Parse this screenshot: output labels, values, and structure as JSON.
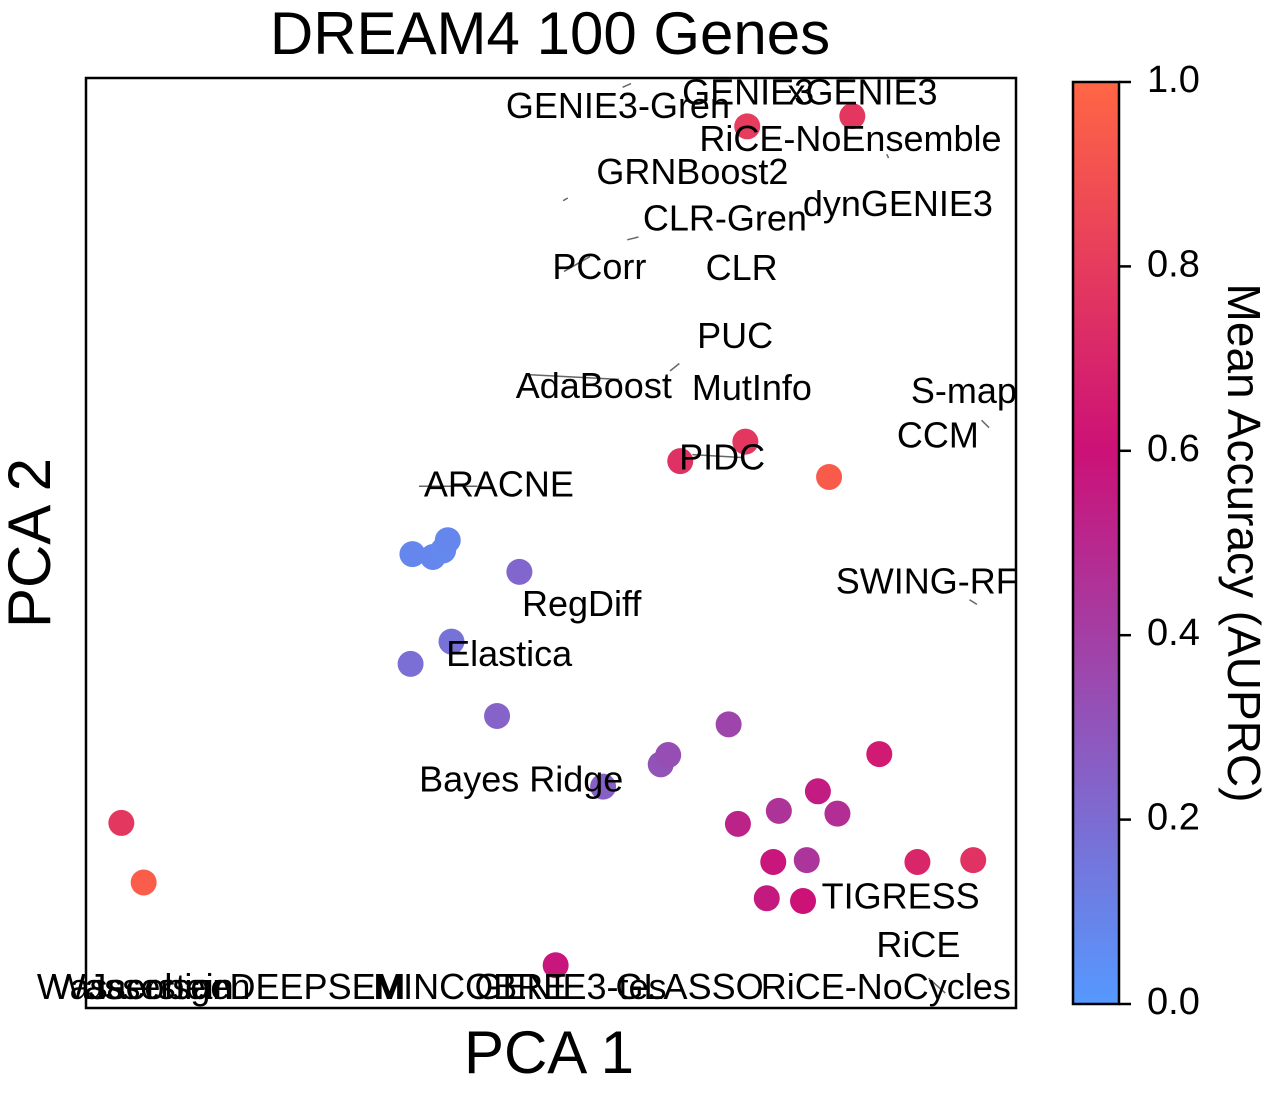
{
  "chart_data": {
    "type": "scatter",
    "title": "DREAM4 100 Genes",
    "xlabel": "PCA 1",
    "ylabel": "PCA 2",
    "xlim": [
      0,
      100
    ],
    "ylim": [
      0,
      100
    ],
    "xticks": false,
    "yticks": false,
    "grid": false,
    "colorbar": {
      "label": "Mean Accuracy (AUPRC)",
      "range": [
        0.0,
        1.0
      ],
      "ticks": [
        "0.0",
        "0.2",
        "0.4",
        "0.6",
        "0.8",
        "1.0"
      ],
      "colors": {
        "low": "#5599ff",
        "mid": "#cc1177",
        "high": "#ff6644"
      }
    },
    "points": [
      {
        "x": 71.1,
        "y": 94.8,
        "acc": 0.8
      },
      {
        "x": 82.4,
        "y": 95.9,
        "acc": 0.78
      },
      {
        "x": 79.9,
        "y": 57.1,
        "acc": 0.95
      },
      {
        "x": 70.9,
        "y": 60.9,
        "acc": 0.78
      },
      {
        "x": 63.9,
        "y": 58.8,
        "acc": 0.75
      },
      {
        "x": 3.8,
        "y": 19.9,
        "acc": 0.78
      },
      {
        "x": 6.2,
        "y": 13.5,
        "acc": 0.96
      },
      {
        "x": 35.1,
        "y": 48.8,
        "acc": 0.08
      },
      {
        "x": 37.3,
        "y": 48.5,
        "acc": 0.08
      },
      {
        "x": 38.4,
        "y": 49.2,
        "acc": 0.07
      },
      {
        "x": 38.9,
        "y": 50.3,
        "acc": 0.08
      },
      {
        "x": 46.6,
        "y": 46.9,
        "acc": 0.22
      },
      {
        "x": 39.3,
        "y": 39.4,
        "acc": 0.17
      },
      {
        "x": 34.9,
        "y": 37.0,
        "acc": 0.19
      },
      {
        "x": 44.2,
        "y": 31.4,
        "acc": 0.24
      },
      {
        "x": 55.6,
        "y": 23.8,
        "acc": 0.25
      },
      {
        "x": 61.8,
        "y": 26.2,
        "acc": 0.31
      },
      {
        "x": 62.6,
        "y": 27.2,
        "acc": 0.33
      },
      {
        "x": 69.1,
        "y": 30.5,
        "acc": 0.37
      },
      {
        "x": 85.3,
        "y": 27.3,
        "acc": 0.64
      },
      {
        "x": 74.5,
        "y": 21.2,
        "acc": 0.45
      },
      {
        "x": 78.7,
        "y": 23.3,
        "acc": 0.55
      },
      {
        "x": 80.8,
        "y": 20.9,
        "acc": 0.47
      },
      {
        "x": 70.1,
        "y": 19.8,
        "acc": 0.52
      },
      {
        "x": 73.9,
        "y": 15.7,
        "acc": 0.58
      },
      {
        "x": 77.5,
        "y": 15.9,
        "acc": 0.44
      },
      {
        "x": 89.4,
        "y": 15.7,
        "acc": 0.7
      },
      {
        "x": 95.4,
        "y": 15.9,
        "acc": 0.76
      },
      {
        "x": 73.2,
        "y": 11.8,
        "acc": 0.56
      },
      {
        "x": 77.1,
        "y": 11.5,
        "acc": 0.6
      },
      {
        "x": 50.5,
        "y": 4.6,
        "acc": 0.58
      }
    ],
    "annotations": [
      {
        "text": "GENIE3-Gren",
        "x": 57.2,
        "y": 96.7
      },
      {
        "text": "GENIE3",
        "x": 71.2,
        "y": 98.2
      },
      {
        "text": "xGENIE3",
        "x": 83.5,
        "y": 98.2
      },
      {
        "text": "RiCE-NoEnsemble",
        "x": 82.2,
        "y": 93.2
      },
      {
        "text": "GRNBoost2",
        "x": 65.2,
        "y": 89.6
      },
      {
        "text": "dynGENIE3",
        "x": 87.3,
        "y": 86.2
      },
      {
        "text": "CLR-Gren",
        "x": 68.7,
        "y": 84.6
      },
      {
        "text": "PCorr",
        "x": 55.2,
        "y": 79.4
      },
      {
        "text": "CLR",
        "x": 70.5,
        "y": 79.3
      },
      {
        "text": "PUC",
        "x": 69.8,
        "y": 72.0
      },
      {
        "text": "AdaBoost",
        "x": 54.6,
        "y": 66.6
      },
      {
        "text": "MutInfo",
        "x": 71.6,
        "y": 66.4
      },
      {
        "text": "S-map",
        "x": 94.4,
        "y": 66.1
      },
      {
        "text": "CCM",
        "x": 91.6,
        "y": 61.3
      },
      {
        "text": "PIDC",
        "x": 68.4,
        "y": 58.9
      },
      {
        "text": "ARACNE",
        "x": 44.4,
        "y": 56.0
      },
      {
        "text": "SWING-RF",
        "x": 90.4,
        "y": 45.6
      },
      {
        "text": "RegDiff",
        "x": 53.3,
        "y": 43.2
      },
      {
        "text": "Elastica",
        "x": 45.5,
        "y": 37.8
      },
      {
        "text": "Bayes Ridge",
        "x": 46.8,
        "y": 24.3
      },
      {
        "text": "TIGRESS",
        "x": 87.6,
        "y": 11.7
      },
      {
        "text": "RiCE",
        "x": 89.5,
        "y": 6.5
      },
      {
        "text": "RiCE-NoCycles",
        "x": 86.0,
        "y": 2.0
      },
      {
        "text": "Wassersgen",
        "x": 7.0,
        "y": 2.0
      },
      {
        "text": "Jacobian",
        "x": 8.0,
        "y": 2.0
      },
      {
        "text": "Wasserstein",
        "x": 5.3,
        "y": 2.0
      },
      {
        "text": "DEEPSEM",
        "x": 24.9,
        "y": 2.0
      },
      {
        "text": "MINCOBRE",
        "x": 41.3,
        "y": 2.0
      },
      {
        "text": "GENIE3-tes",
        "x": 52.1,
        "y": 2.0
      },
      {
        "text": "GLASSO",
        "x": 64.9,
        "y": 2.0
      }
    ],
    "leader_lines": [
      {
        "x1": 54.2,
        "y1": 80.8,
        "x2": 51.4,
        "y2": 79.2
      },
      {
        "x1": 58.2,
        "y1": 82.6,
        "x2": 59.4,
        "y2": 82.9
      },
      {
        "x1": 51.3,
        "y1": 86.8,
        "x2": 51.8,
        "y2": 87.1
      },
      {
        "x1": 57.7,
        "y1": 99.0,
        "x2": 58.6,
        "y2": 99.4
      },
      {
        "x1": 86.1,
        "y1": 91.8,
        "x2": 86.3,
        "y2": 91.4
      },
      {
        "x1": 47.5,
        "y1": 68.1,
        "x2": 57.3,
        "y2": 67.6
      },
      {
        "x1": 62.8,
        "y1": 68.5,
        "x2": 63.8,
        "y2": 69.3
      },
      {
        "x1": 96.3,
        "y1": 63.2,
        "x2": 97.1,
        "y2": 62.4
      },
      {
        "x1": 65.2,
        "y1": 59.5,
        "x2": 70.5,
        "y2": 59.2
      },
      {
        "x1": 35.8,
        "y1": 56.1,
        "x2": 42.1,
        "y2": 56.1
      },
      {
        "x1": 95.0,
        "y1": 43.9,
        "x2": 95.8,
        "y2": 43.4
      },
      {
        "x1": 90.6,
        "y1": 3.2,
        "x2": 92.4,
        "y2": 1.6
      }
    ]
  }
}
